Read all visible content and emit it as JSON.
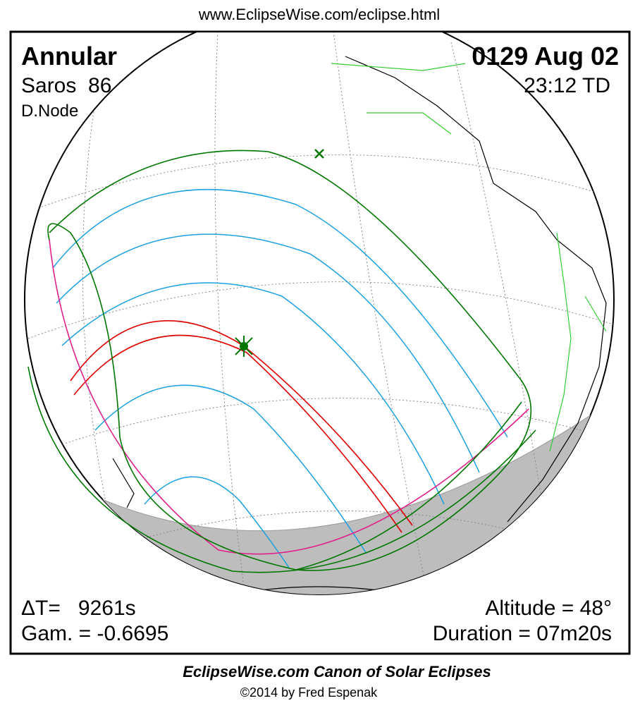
{
  "header": {
    "url": "www.EclipseWise.com/eclipse.html"
  },
  "eclipse": {
    "type": "Annular",
    "saros": "Saros  86",
    "node": "D.Node",
    "date": "0129 Aug 02",
    "time": "23:12 TD"
  },
  "stats": {
    "delta_t": "ΔT=   9261s",
    "gamma": "Gam. = -0.6695",
    "altitude": "Altitude = 48°",
    "duration": "Duration = 07m20s"
  },
  "footer": {
    "title": "EclipseWise.com Canon of Solar Eclipses",
    "copyright": "©2014 by Fred Espenak"
  }
}
